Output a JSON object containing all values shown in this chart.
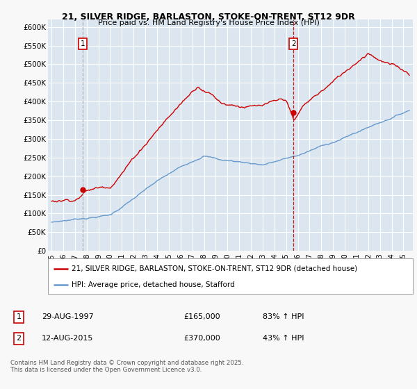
{
  "title_line1": "21, SILVER RIDGE, BARLASTON, STOKE-ON-TRENT, ST12 9DR",
  "title_line2": "Price paid vs. HM Land Registry's House Price Index (HPI)",
  "ylabel_ticks": [
    "£0",
    "£50K",
    "£100K",
    "£150K",
    "£200K",
    "£250K",
    "£300K",
    "£350K",
    "£400K",
    "£450K",
    "£500K",
    "£550K",
    "£600K"
  ],
  "ytick_vals": [
    0,
    50000,
    100000,
    150000,
    200000,
    250000,
    300000,
    350000,
    400000,
    450000,
    500000,
    550000,
    600000
  ],
  "ylim": [
    0,
    620000
  ],
  "xlim_start": 1994.7,
  "xlim_end": 2025.8,
  "marker1_x": 1997.66,
  "marker1_y": 165000,
  "marker2_x": 2015.62,
  "marker2_y": 370000,
  "legend_line1": "21, SILVER RIDGE, BARLASTON, STOKE-ON-TRENT, ST12 9DR (detached house)",
  "legend_line2": "HPI: Average price, detached house, Stafford",
  "table_row1": [
    "1",
    "29-AUG-1997",
    "£165,000",
    "83% ↑ HPI"
  ],
  "table_row2": [
    "2",
    "12-AUG-2015",
    "£370,000",
    "43% ↑ HPI"
  ],
  "footer": "Contains HM Land Registry data © Crown copyright and database right 2025.\nThis data is licensed under the Open Government Licence v3.0.",
  "red_color": "#cc0000",
  "blue_color": "#6699cc",
  "bg_color": "#dce6f0",
  "grid_color": "#ffffff",
  "marker_box_color": "#cc0000",
  "fig_bg": "#f8f8f8",
  "marker1_vline_color": "#aaaaaa",
  "marker2_vline_color": "#cc0000"
}
